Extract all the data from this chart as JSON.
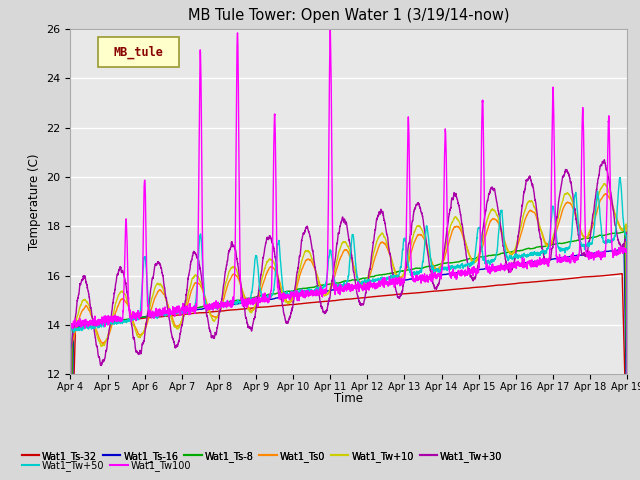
{
  "title": "MB Tule Tower: Open Water 1 (3/19/14-now)",
  "ylabel": "Temperature (C)",
  "xlabel": "Time",
  "ylim": [
    12,
    26
  ],
  "yticks": [
    12,
    14,
    16,
    18,
    20,
    22,
    24,
    26
  ],
  "x_tick_labels": [
    "Apr 4",
    "Apr 5",
    "Apr 6",
    "Apr 7",
    "Apr 8",
    "Apr 9",
    "Apr 10",
    "Apr 11",
    "Apr 12",
    "Apr 13",
    "Apr 14",
    "Apr 15",
    "Apr 16",
    "Apr 17",
    "Apr 18",
    "Apr 19"
  ],
  "bg_color": "#d8d8d8",
  "plot_bg_color": "#e8e8e8",
  "grid_color": "#ffffff",
  "series_colors": {
    "Wat1_Ts-32": "#cc0000",
    "Wat1_Ts-16": "#0000cc",
    "Wat1_Ts-8": "#00aa00",
    "Wat1_Ts0": "#ff8800",
    "Wat1_Tw+10": "#cccc00",
    "Wat1_Tw+30": "#aa00aa",
    "Wat1_Tw+50": "#00cccc",
    "Wat1_Tw100": "#ff00ff"
  },
  "legend_box_color": "#ffffcc",
  "legend_box_edge": "#999933",
  "legend_text": "MB_tule",
  "legend_text_color": "#880000",
  "n_days": 15,
  "pts_per_day": 288
}
